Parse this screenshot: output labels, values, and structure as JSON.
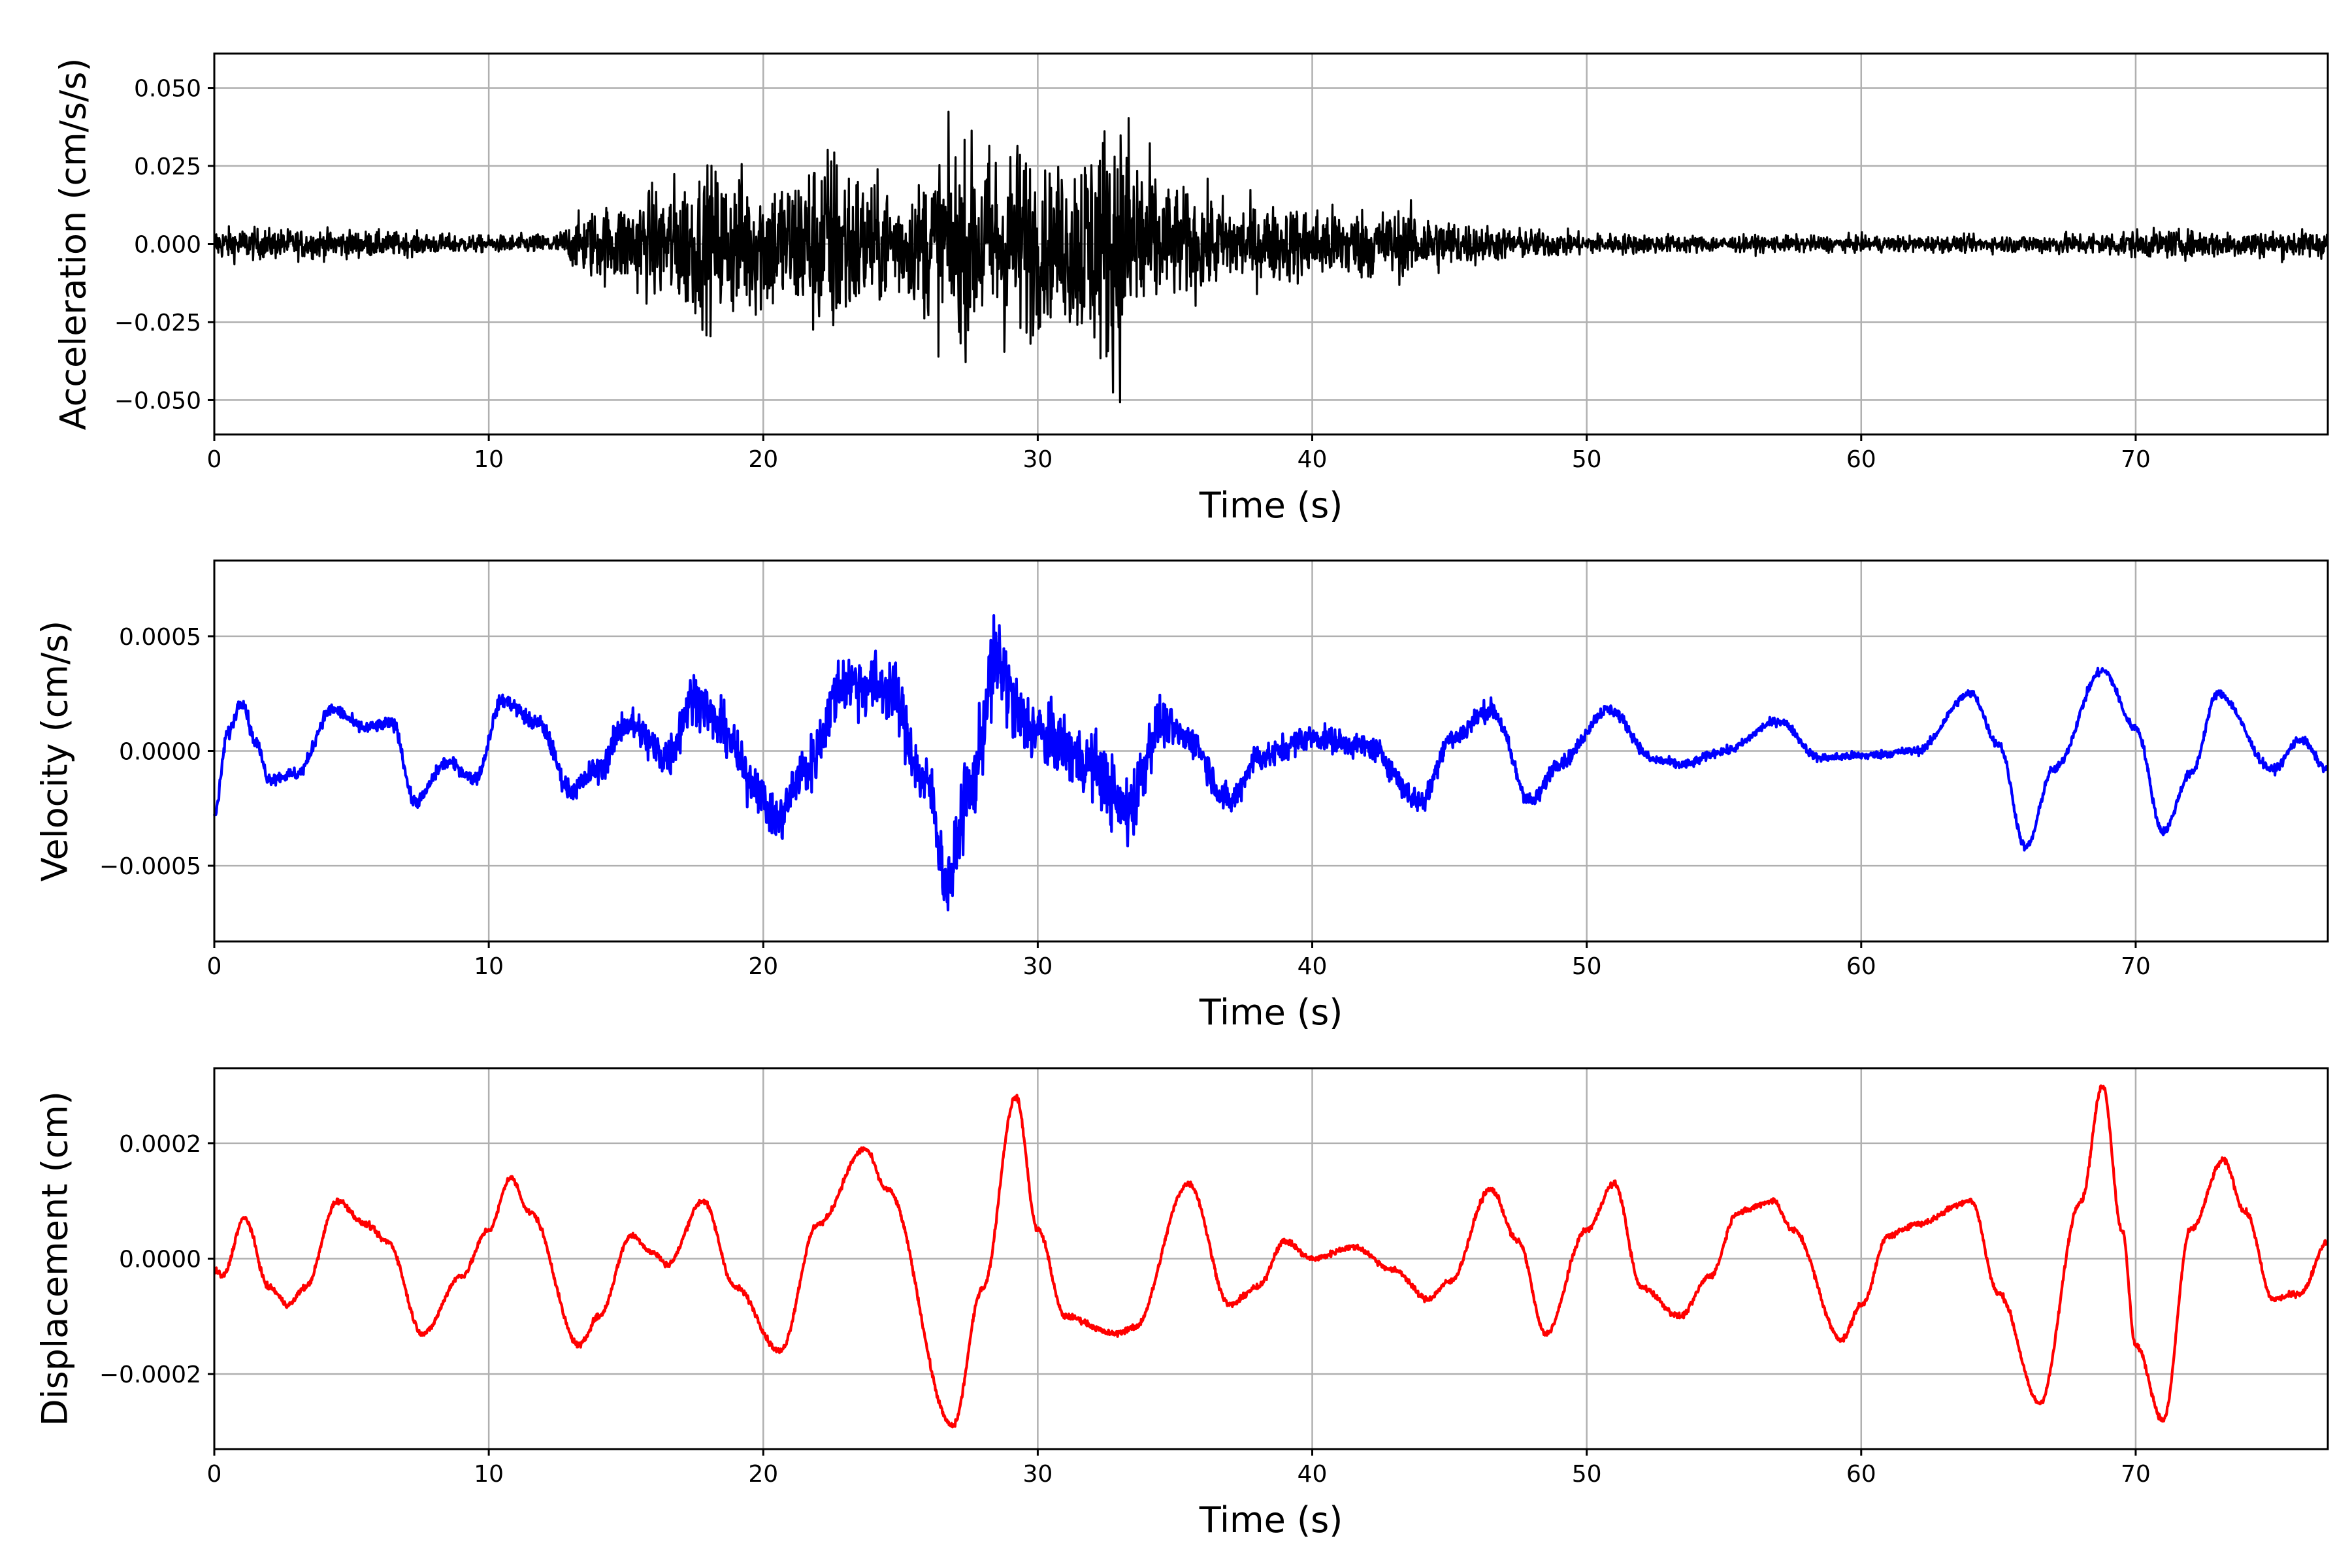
{
  "chart_data": [
    {
      "type": "line",
      "xlabel": "Time (s)",
      "ylabel": "Acceleration (cm/s/s)",
      "xlim": [
        0,
        77
      ],
      "ylim": [
        -0.061,
        0.061
      ],
      "xticks": [
        0,
        10,
        20,
        30,
        40,
        50,
        60,
        70
      ],
      "xtick_labels": [
        "0",
        "10",
        "20",
        "30",
        "40",
        "50",
        "60",
        "70"
      ],
      "yticks": [
        -0.05,
        -0.025,
        0.0,
        0.025,
        0.05
      ],
      "ytick_labels": [
        "−0.050",
        "−0.025",
        "0.000",
        "0.025",
        "0.050"
      ],
      "grid": true,
      "color": "#000000",
      "series": [
        {
          "envelope": {
            "x": [
              0,
              5,
              10,
              12.5,
              13.5,
              15,
              17,
              18,
              19.5,
              21,
              22.5,
              24,
              25.5,
              26.5,
              28,
              29.5,
              30.5,
              32,
              33.2,
              34.5,
              36,
              38,
              40,
              42,
              44,
              45.5,
              47,
              50,
              55,
              60,
              65,
              70,
              77
            ],
            "y": [
              0.006,
              0.005,
              0.003,
              0.004,
              0.012,
              0.016,
              0.025,
              0.028,
              0.027,
              0.026,
              0.038,
              0.022,
              0.021,
              0.034,
              0.036,
              0.038,
              0.025,
              0.042,
              0.05,
              0.022,
              0.018,
              0.014,
              0.014,
              0.013,
              0.012,
              0.008,
              0.006,
              0.004,
              0.003,
              0.003,
              0.003,
              0.005,
              0.005
            ]
          }
        }
      ]
    },
    {
      "type": "line",
      "xlabel": "Time (s)",
      "ylabel": "Velocity (cm/s)",
      "xlim": [
        0,
        77
      ],
      "ylim": [
        -0.00083,
        0.00083
      ],
      "xticks": [
        0,
        10,
        20,
        30,
        40,
        50,
        60,
        70
      ],
      "xtick_labels": [
        "0",
        "10",
        "20",
        "30",
        "40",
        "50",
        "60",
        "70"
      ],
      "yticks": [
        -0.0005,
        0.0,
        0.0005
      ],
      "ytick_labels": [
        "−0.0005",
        "0.0000",
        "0.0005"
      ],
      "grid": true,
      "color": "#0000ff",
      "series": [
        {
          "x": [
            0,
            0.5,
            1,
            1.5,
            2,
            3,
            4.3,
            5.5,
            6.5,
            7.3,
            8.5,
            9.5,
            10.5,
            11.8,
            13,
            14,
            15,
            16.5,
            17.5,
            18.5,
            19.5,
            20.5,
            21.5,
            23,
            24.5,
            26,
            26.7,
            27.5,
            28.5,
            29.5,
            30.5,
            32,
            33.2,
            34.5,
            35.5,
            37,
            38,
            40,
            42,
            44,
            45,
            46.5,
            48,
            49,
            50.8,
            52.5,
            53.5,
            55,
            57,
            58.5,
            60,
            62,
            64,
            65,
            66,
            67,
            68.8,
            70,
            71,
            72,
            73,
            75,
            76,
            77
          ],
          "y": [
            -0.00028,
            8e-05,
            0.00022,
            4e-05,
            -0.00012,
            -0.0001,
            0.00018,
            0.0001,
            0.00012,
            -0.00022,
            -5e-05,
            -0.00012,
            0.00022,
            0.00012,
            -0.00017,
            -8e-05,
            0.00012,
            -2e-05,
            0.00024,
            0.0001,
            -0.00012,
            -0.0003,
            -8e-05,
            0.0003,
            0.00028,
            -0.00015,
            -0.00058,
            -0.00018,
            0.00038,
            0.00012,
            5e-05,
            -6e-05,
            -0.00026,
            0.00012,
            5e-05,
            -0.00022,
            -3e-05,
            6e-05,
            2e-05,
            -0.00022,
            5e-05,
            0.00018,
            -0.00022,
            -5e-05,
            0.00018,
            -4e-05,
            -6e-05,
            0.0,
            0.00013,
            -3e-05,
            -2e-05,
            0.0,
            0.00025,
            3e-05,
            -0.00042,
            -8e-05,
            0.00035,
            0.0001,
            -0.00035,
            -0.0001,
            0.00025,
            -8e-05,
            5e-05,
            -8e-05
          ],
          "noise_envelope": {
            "x": [
              0,
              10,
              13,
              15,
              17,
              18,
              20,
              22,
              24,
              26,
              27,
              28.5,
              30,
              32,
              33.5,
              35,
              40,
              44,
              46,
              48,
              50,
              55,
              77
            ],
            "y": [
              3e-05,
              3e-05,
              5e-05,
              8e-05,
              0.00012,
              0.00012,
              0.0001,
              0.00014,
              0.00016,
              0.00014,
              0.00016,
              0.00022,
              0.00015,
              0.00016,
              0.00018,
              8e-05,
              6e-05,
              6e-05,
              5e-05,
              4e-05,
              3e-05,
              2e-05,
              2e-05
            ]
          }
        }
      ]
    },
    {
      "type": "line",
      "xlabel": "Time (s)",
      "ylabel": "Displacement (cm)",
      "xlim": [
        0,
        77
      ],
      "ylim": [
        -0.00033,
        0.00033
      ],
      "xticks": [
        0,
        10,
        20,
        30,
        40,
        50,
        60,
        70
      ],
      "xtick_labels": [
        "0",
        "10",
        "20",
        "30",
        "40",
        "50",
        "60",
        "70"
      ],
      "yticks": [
        -0.0002,
        0.0,
        0.0002
      ],
      "ytick_labels": [
        "−0.0002",
        "0.0000",
        "0.0002"
      ],
      "grid": true,
      "color": "#ff0000",
      "series": [
        {
          "x": [
            0,
            0.3,
            1.1,
            2,
            2.7,
            3.3,
            4.5,
            5.5,
            6.3,
            7.6,
            9,
            10,
            10.8,
            11.5,
            13.3,
            14,
            15.2,
            16,
            16.5,
            17.8,
            19,
            20.6,
            22,
            23.7,
            24.5,
            26.9,
            28,
            29.2,
            30,
            31,
            32.8,
            33.5,
            35.5,
            37,
            38,
            39,
            40,
            41.5,
            43,
            44.2,
            45,
            46.5,
            47.5,
            48.5,
            50,
            51,
            52,
            53.4,
            54.5,
            55.5,
            56.8,
            57.5,
            59.3,
            60,
            61,
            62,
            64,
            65,
            66.5,
            68,
            68.8,
            69.5,
            70,
            71,
            72,
            73.2,
            74,
            75,
            76,
            77
          ],
          "y": [
            -2e-05,
            -3e-05,
            7e-05,
            -5e-05,
            -8e-05,
            -5e-05,
            0.0001,
            6e-05,
            3e-05,
            -0.00013,
            -3e-05,
            5e-05,
            0.00014,
            8e-05,
            -0.00015,
            -0.0001,
            4e-05,
            1e-05,
            -1e-05,
            0.0001,
            -5e-05,
            -0.00016,
            6e-05,
            0.00019,
            0.00012,
            -0.00029,
            -5e-05,
            0.00028,
            5e-05,
            -0.0001,
            -0.00013,
            -0.00012,
            0.00013,
            -8e-05,
            -5e-05,
            3e-05,
            0.0,
            2e-05,
            -2e-05,
            -7e-05,
            -4e-05,
            0.00012,
            3e-05,
            -0.00013,
            5e-05,
            0.00013,
            -5e-05,
            -0.0001,
            -3e-05,
            8e-05,
            0.0001,
            5e-05,
            -0.00014,
            -8e-05,
            4e-05,
            6e-05,
            0.0001,
            -6e-05,
            -0.00025,
            0.0001,
            0.0003,
            5e-05,
            -0.00015,
            -0.00028,
            5e-05,
            0.00017,
            8e-05,
            -7e-05,
            -6e-05,
            3e-05
          ]
        }
      ]
    }
  ]
}
